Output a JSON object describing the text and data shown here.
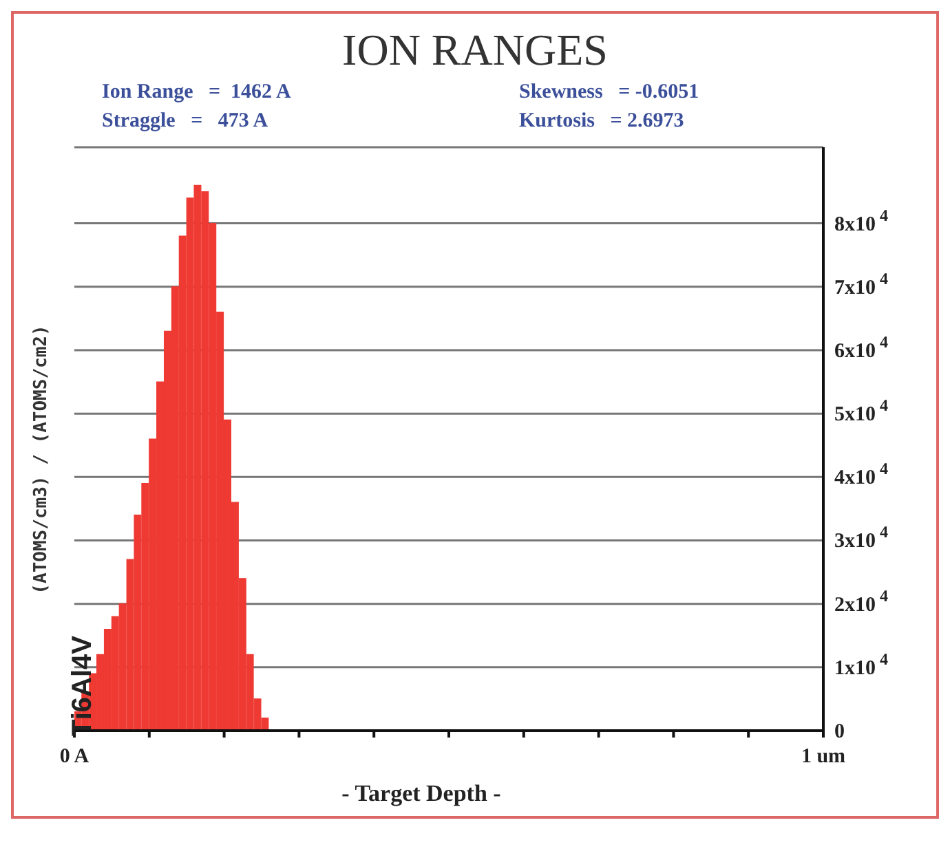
{
  "chart_data": {
    "type": "histogram",
    "title": "ION RANGES",
    "xlabel": "- Target Depth -",
    "ylabel": "(ATOMS/cm3) / (ATOMS/cm2)",
    "annotations": [
      "Ion Range   =  1462 A",
      "Straggle   =   473 A",
      "Skewness   = -0.6051",
      "Kurtosis   = 2.6973",
      "Ti6Al4V"
    ],
    "bins": [
      0,
      0.01,
      0.02,
      0.03,
      0.04,
      0.05,
      0.06,
      0.07,
      0.08,
      0.09,
      0.1,
      0.11,
      0.12,
      0.13,
      0.14,
      0.15,
      0.16,
      0.17,
      0.18,
      0.19,
      0.2,
      0.21,
      0.22,
      0.23,
      0.24,
      0.25,
      0.26
    ],
    "values": [
      3000,
      6000,
      9000,
      12000,
      16000,
      18000,
      20000,
      27000,
      34000,
      39000,
      46000,
      55000,
      63000,
      70000,
      78000,
      84000,
      86000,
      85000,
      80000,
      66000,
      49000,
      36000,
      24000,
      12000,
      5000,
      2000
    ],
    "color": "#ee3a33",
    "xlim": [
      0,
      1
    ],
    "xticks": [
      {
        "value": 0,
        "label": "0 A"
      },
      {
        "value": 0.1,
        "label": null
      },
      {
        "value": 0.2,
        "label": null
      },
      {
        "value": 0.3,
        "label": null
      },
      {
        "value": 0.4,
        "label": null
      },
      {
        "value": 0.5,
        "label": null
      },
      {
        "value": 0.6,
        "label": null
      },
      {
        "value": 0.7,
        "label": null
      },
      {
        "value": 0.8,
        "label": null
      },
      {
        "value": 0.9,
        "label": null
      },
      {
        "value": 1,
        "label": "1 um"
      }
    ],
    "ylim": [
      0,
      92000
    ],
    "yticks": [
      {
        "value": 0,
        "label": "0"
      },
      {
        "value": 10000,
        "label": "1x10$^{4}$"
      },
      {
        "value": 20000,
        "label": "2x10$^{4}$"
      },
      {
        "value": 30000,
        "label": "3x10$^{4}$"
      },
      {
        "value": 40000,
        "label": "4x10$^{4}$"
      },
      {
        "value": 50000,
        "label": "5x10$^{4}$"
      },
      {
        "value": 60000,
        "label": "6x10$^{4}$"
      },
      {
        "value": 70000,
        "label": "7x10$^{4}$"
      },
      {
        "value": 80000,
        "label": "8x10$^{4}$"
      }
    ],
    "grid": "y",
    "legend": false
  }
}
